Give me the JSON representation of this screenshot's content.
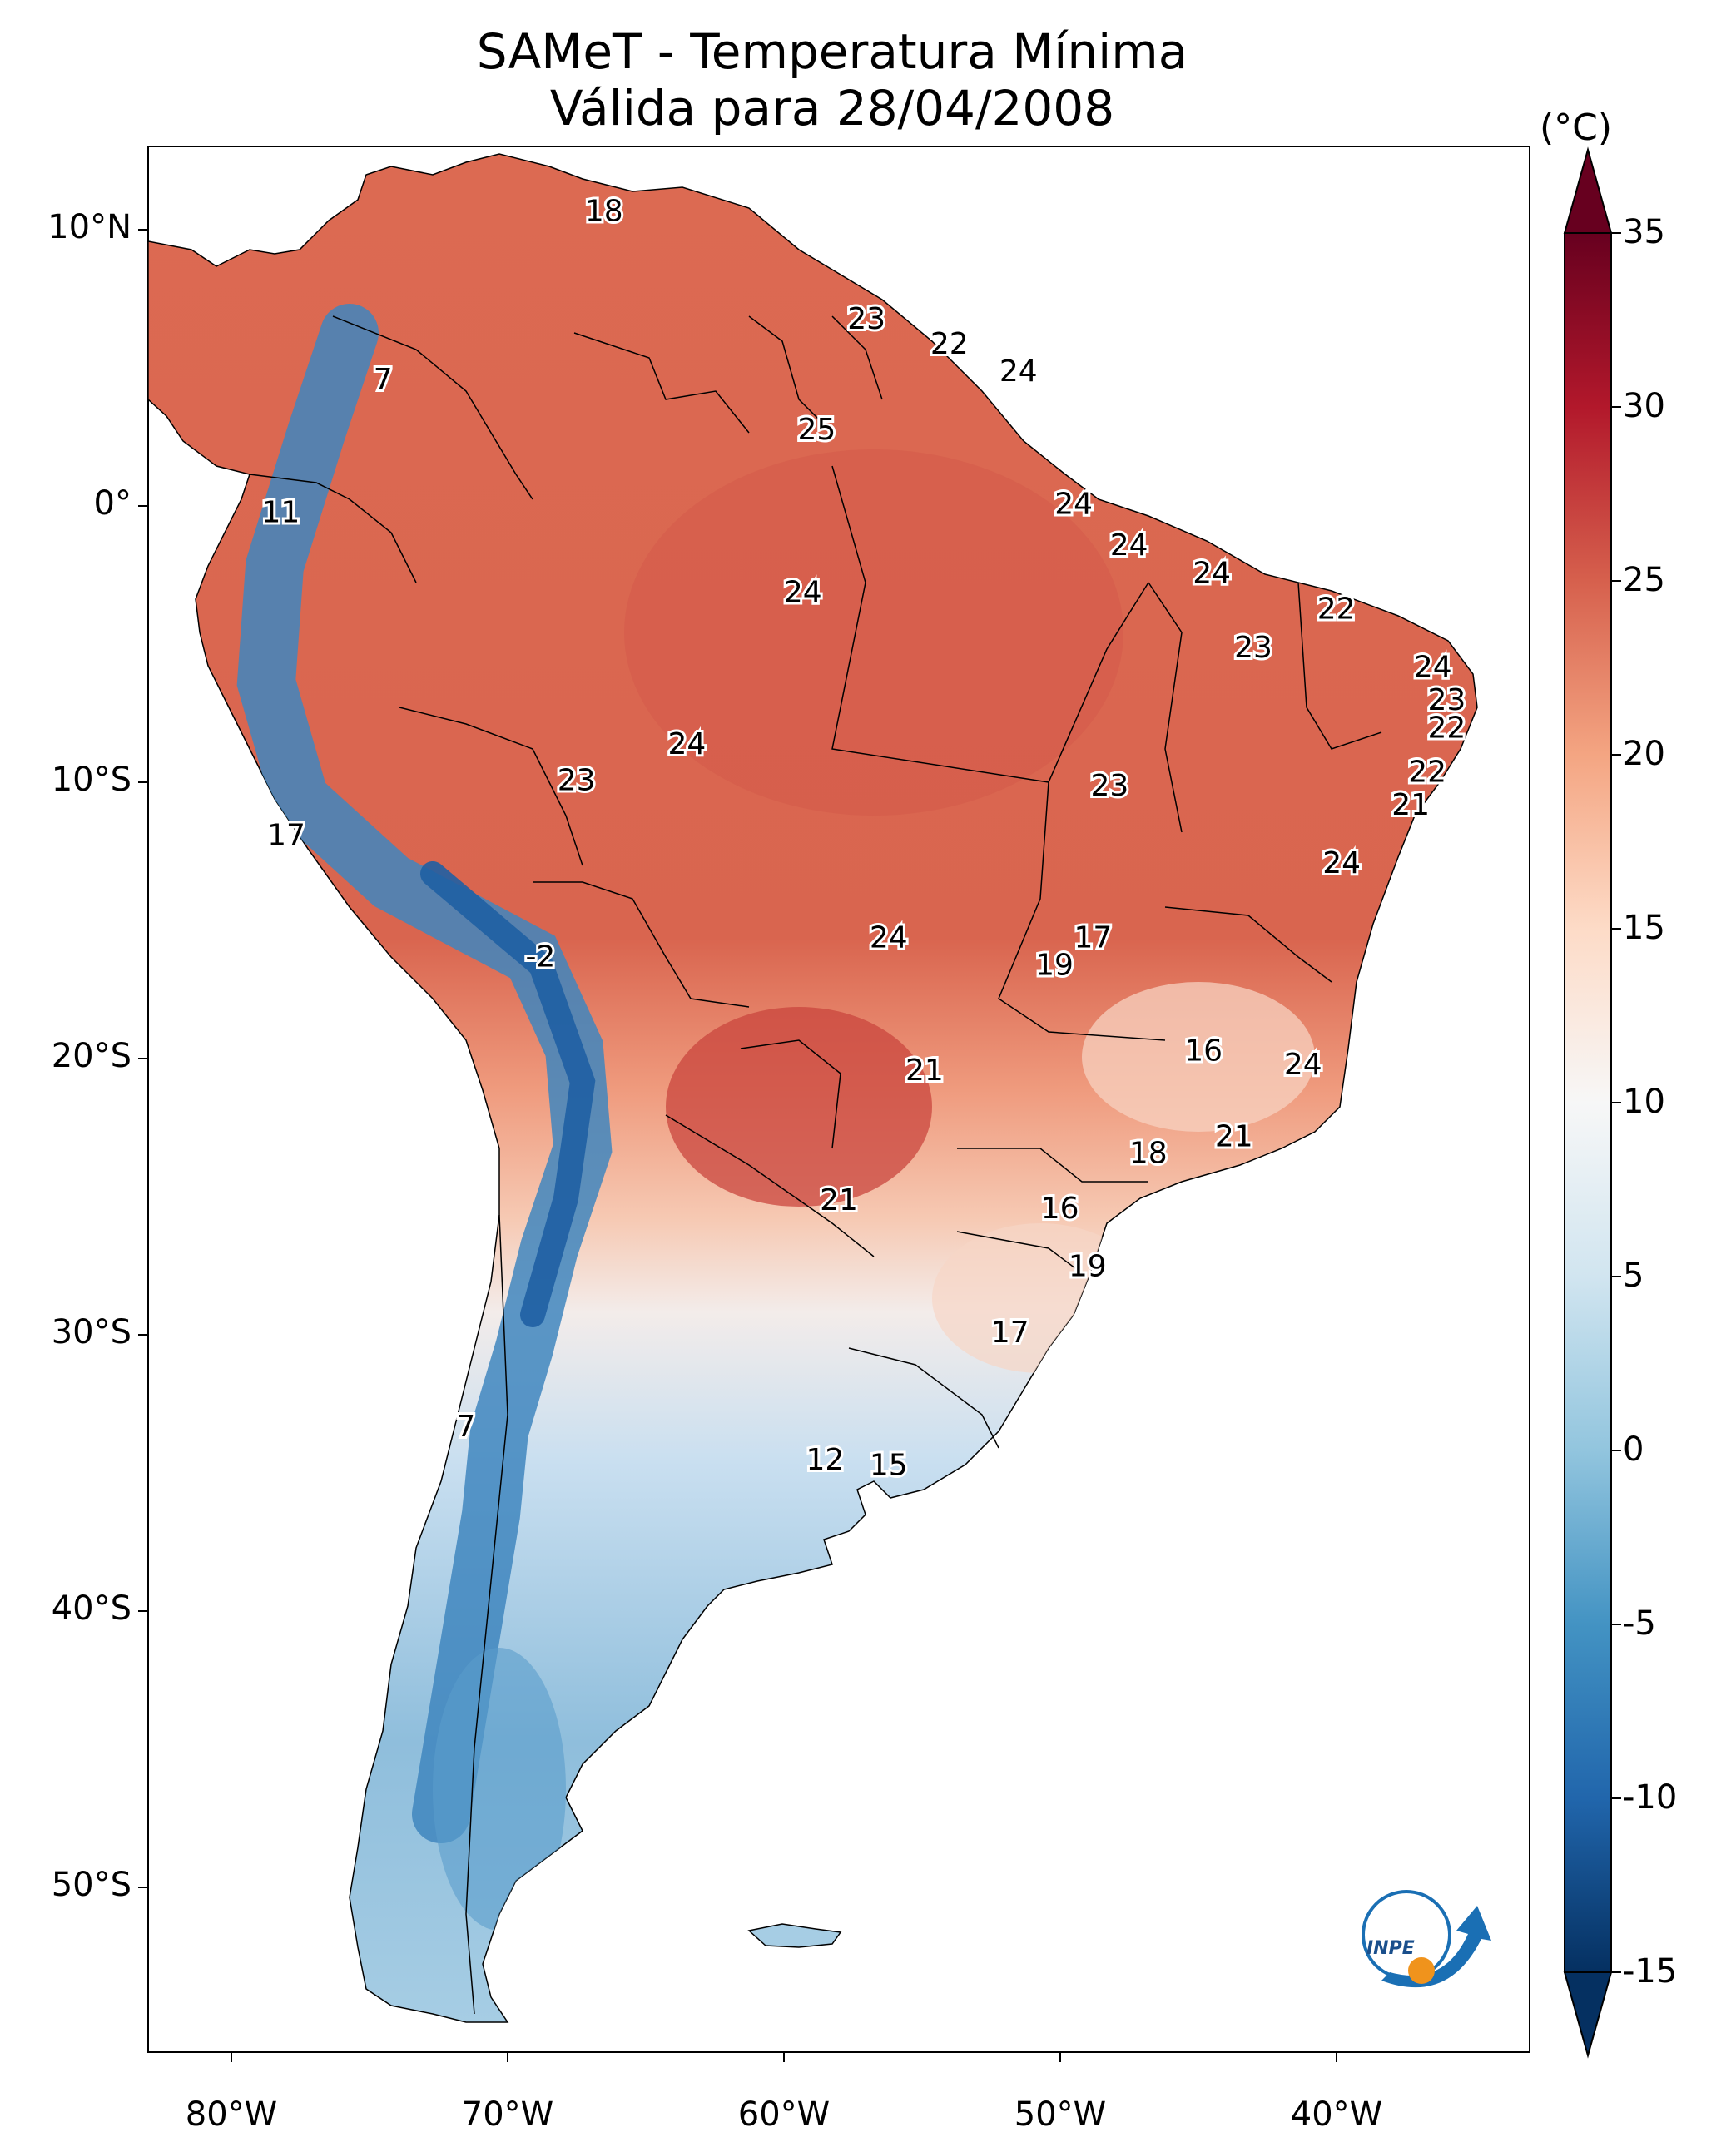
{
  "title": {
    "line1": "SAMeT - Temperatura Mínima",
    "line2": "Válida para 28/04/2008"
  },
  "axes": {
    "lat_labels": [
      "10°N",
      "0°",
      "10°S",
      "20°S",
      "30°S",
      "40°S",
      "50°S"
    ],
    "lat_values": [
      10,
      0,
      -10,
      -20,
      -30,
      -40,
      -50
    ],
    "lon_labels": [
      "80°W",
      "70°W",
      "60°W",
      "50°W",
      "40°W"
    ],
    "lon_values": [
      -80,
      -70,
      -60,
      -50,
      -40
    ],
    "lon_range": [
      -83,
      -33
    ],
    "lat_range": [
      -56,
      13
    ]
  },
  "colorbar": {
    "unit": "(°C)",
    "tick_labels": [
      "35",
      "30",
      "25",
      "20",
      "15",
      "10",
      "5",
      "0",
      "-5",
      "-10",
      "-15"
    ],
    "tick_values": [
      35,
      30,
      25,
      20,
      15,
      10,
      5,
      0,
      -5,
      -10,
      -15
    ],
    "range": [
      -15,
      35
    ],
    "extend": "both",
    "colors": [
      "#053061",
      "#2166ac",
      "#4393c3",
      "#92c5de",
      "#d1e5f0",
      "#f7f7f7",
      "#fddbc7",
      "#f4a582",
      "#d6604d",
      "#b2182b",
      "#67001f"
    ]
  },
  "chart_data": {
    "type": "heatmap",
    "title": "SAMeT - Temperatura Mínima Válida para 28/04/2008",
    "unit": "°C",
    "station_labels": [
      {
        "text": "18",
        "lon": -66.5,
        "lat": 10.6
      },
      {
        "text": "7",
        "lon": -74.5,
        "lat": 4.5
      },
      {
        "text": "11",
        "lon": -78.2,
        "lat": -0.3
      },
      {
        "text": "23",
        "lon": -57.0,
        "lat": 6.7
      },
      {
        "text": "22",
        "lon": -54.0,
        "lat": 5.8
      },
      {
        "text": "24",
        "lon": -51.5,
        "lat": 4.8
      },
      {
        "text": "25",
        "lon": -58.8,
        "lat": 2.7
      },
      {
        "text": "24",
        "lon": -49.5,
        "lat": 0.0
      },
      {
        "text": "24",
        "lon": -47.5,
        "lat": -1.5
      },
      {
        "text": "24",
        "lon": -44.5,
        "lat": -2.5
      },
      {
        "text": "22",
        "lon": -40.0,
        "lat": -3.8
      },
      {
        "text": "23",
        "lon": -43.0,
        "lat": -5.2
      },
      {
        "text": "24",
        "lon": -36.5,
        "lat": -5.9
      },
      {
        "text": "23",
        "lon": -36.0,
        "lat": -7.1
      },
      {
        "text": "22",
        "lon": -36.0,
        "lat": -8.1
      },
      {
        "text": "22",
        "lon": -36.7,
        "lat": -9.7
      },
      {
        "text": "21",
        "lon": -37.3,
        "lat": -10.9
      },
      {
        "text": "24",
        "lon": -39.8,
        "lat": -13.0
      },
      {
        "text": "24",
        "lon": -59.3,
        "lat": -3.2
      },
      {
        "text": "24",
        "lon": -63.5,
        "lat": -8.7
      },
      {
        "text": "23",
        "lon": -67.5,
        "lat": -10.0
      },
      {
        "text": "23",
        "lon": -48.2,
        "lat": -10.2
      },
      {
        "text": "17",
        "lon": -78.0,
        "lat": -12.0
      },
      {
        "text": "-2",
        "lon": -68.8,
        "lat": -16.4
      },
      {
        "text": "24",
        "lon": -56.2,
        "lat": -15.7
      },
      {
        "text": "17",
        "lon": -48.8,
        "lat": -15.7
      },
      {
        "text": "19",
        "lon": -50.2,
        "lat": -16.7
      },
      {
        "text": "16",
        "lon": -44.8,
        "lat": -19.8
      },
      {
        "text": "24",
        "lon": -41.2,
        "lat": -20.3
      },
      {
        "text": "21",
        "lon": -54.9,
        "lat": -20.5
      },
      {
        "text": "18",
        "lon": -46.8,
        "lat": -23.5
      },
      {
        "text": "21",
        "lon": -43.7,
        "lat": -22.9
      },
      {
        "text": "21",
        "lon": -58.0,
        "lat": -25.2
      },
      {
        "text": "16",
        "lon": -50.0,
        "lat": -25.5
      },
      {
        "text": "19",
        "lon": -49.0,
        "lat": -27.6
      },
      {
        "text": "17",
        "lon": -51.8,
        "lat": -30.0
      },
      {
        "text": "7",
        "lon": -71.5,
        "lat": -33.4
      },
      {
        "text": "12",
        "lon": -58.5,
        "lat": -34.6
      },
      {
        "text": "15",
        "lon": -56.2,
        "lat": -34.8
      }
    ]
  },
  "logo": {
    "text": "INPE"
  }
}
